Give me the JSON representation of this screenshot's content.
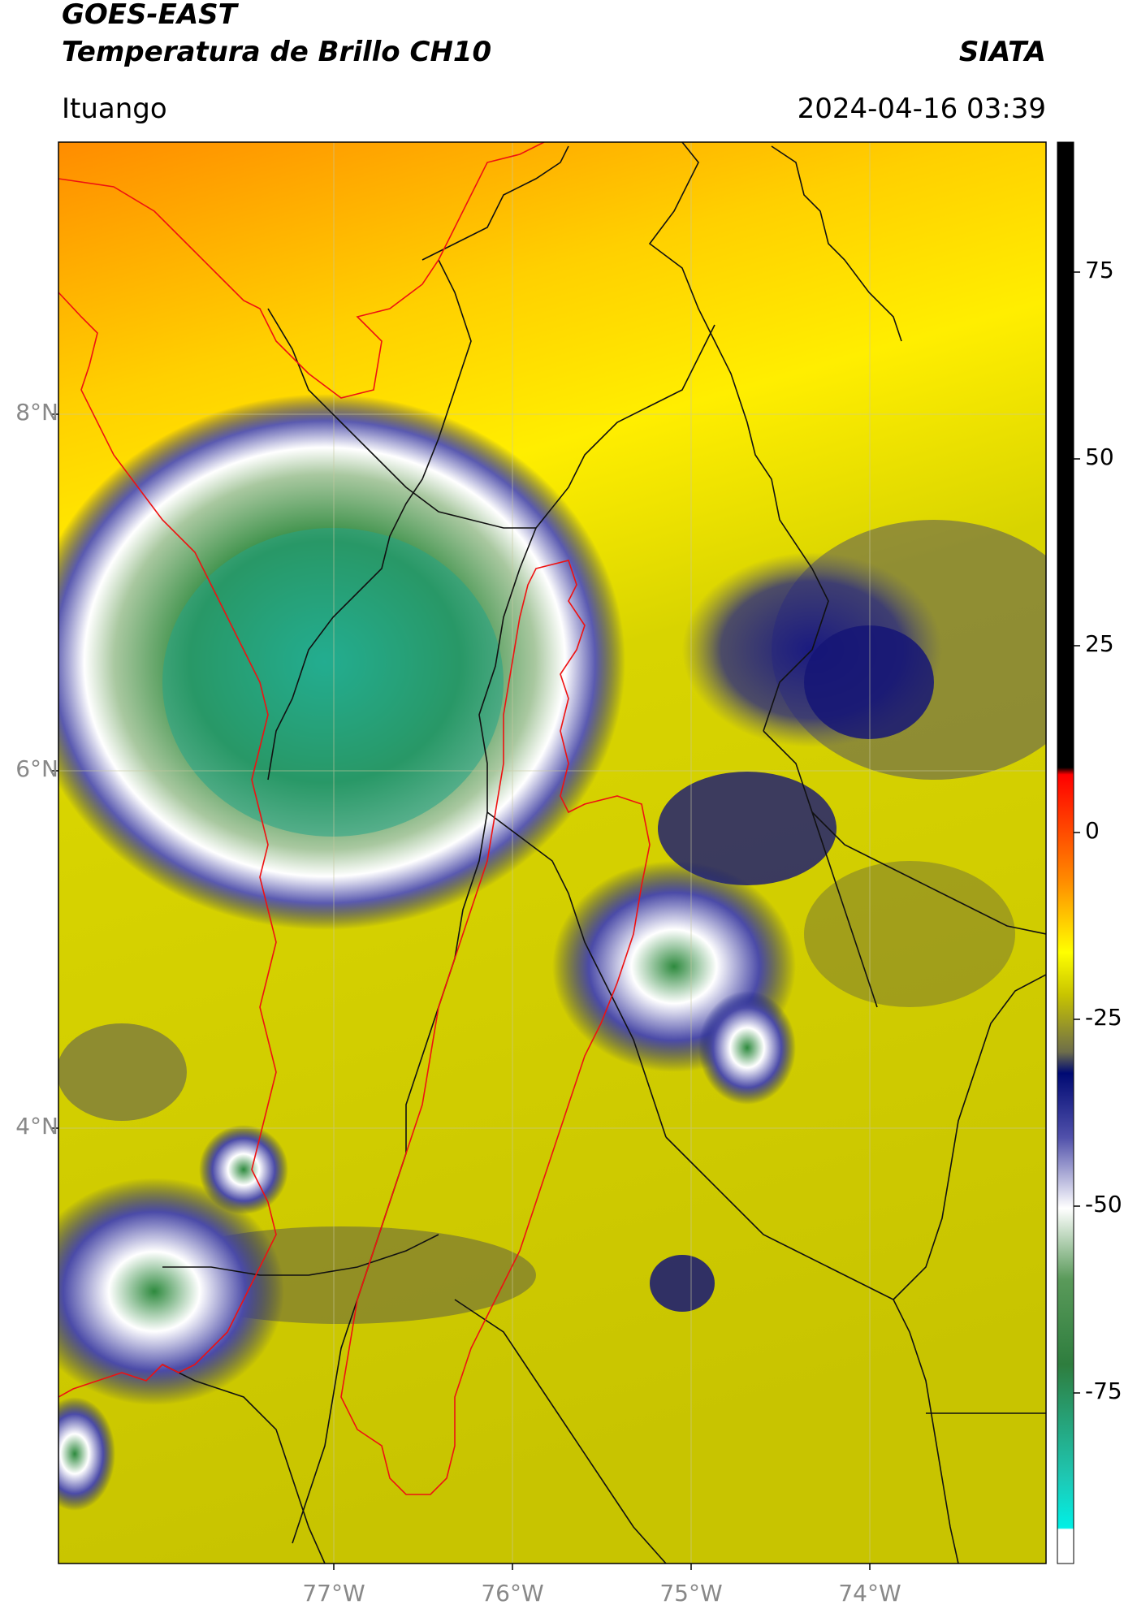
{
  "header": {
    "satellite": "GOES-EAST",
    "product": "Temperatura de Brillo CH10",
    "organization": "SIATA",
    "region": "Ituango",
    "timestamp": "2024-04-16 03:39"
  },
  "map": {
    "latitude_labels": [
      "8°N",
      "6°N",
      "4°N"
    ],
    "longitude_labels": [
      "77°W",
      "76°W",
      "75°W",
      "74°W"
    ]
  },
  "colorbar": {
    "tick_labels": [
      "75",
      "50",
      "25",
      "0",
      "-25",
      "-50",
      "-75"
    ],
    "colors": {
      "black": "#000000",
      "red": "#ff0000",
      "orange": "#ff9900",
      "yellow": "#ffff00",
      "olive": "#8c8c3c",
      "navy": "#000a73",
      "white": "#ffffff",
      "green": "#2f7d2f",
      "cyan": "#00e6d7"
    }
  }
}
